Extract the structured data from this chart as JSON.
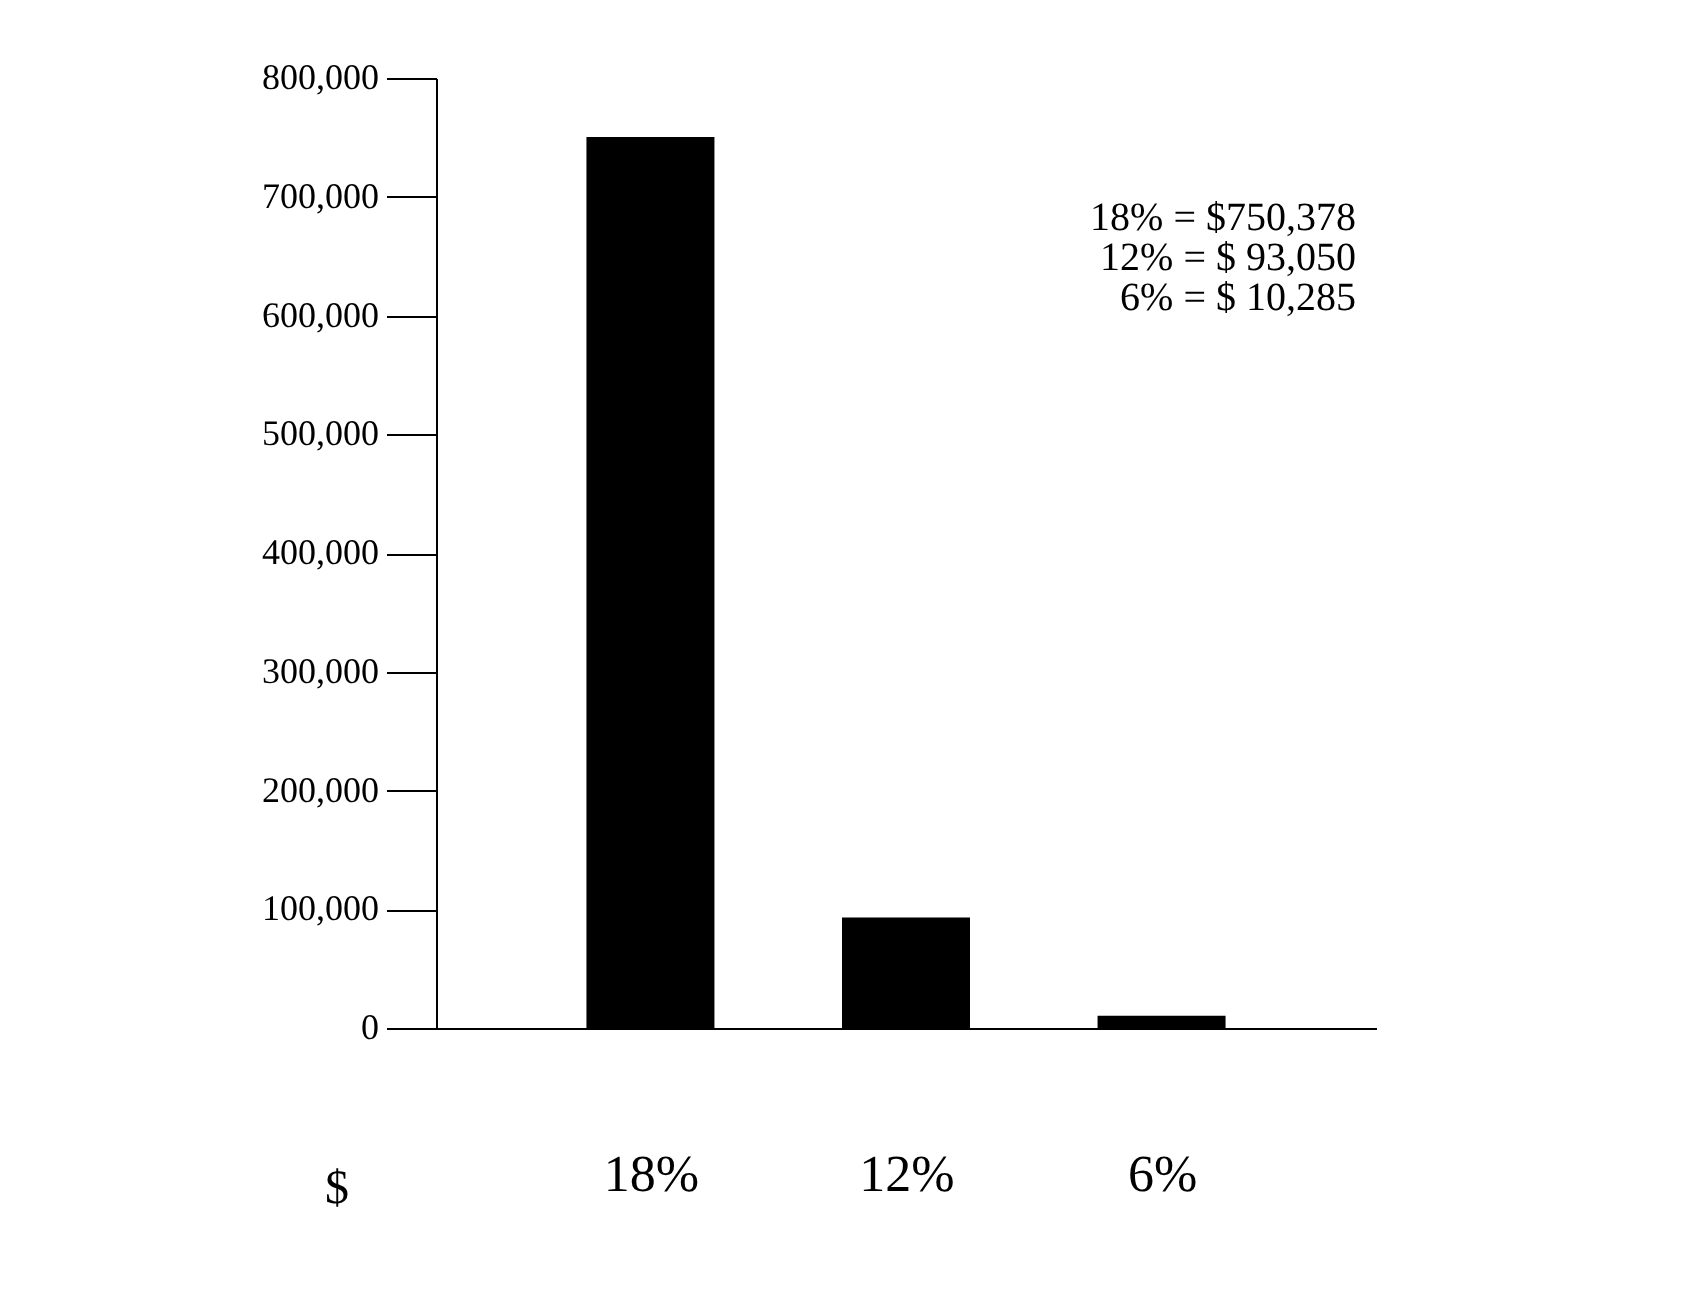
{
  "chart_data": {
    "type": "bar",
    "categories": [
      "18%",
      "12%",
      "6%"
    ],
    "values": [
      750378,
      93050,
      10285
    ],
    "color": "#000000",
    "ylabel": "$",
    "ylim": [
      0,
      800000
    ],
    "yticks": [
      0,
      {
        "value": 100000,
        "label": "100,000"
      },
      {
        "value": 200000,
        "label": "200,000"
      },
      {
        "value": 300000,
        "label": "300,000"
      },
      {
        "value": 400000,
        "label": "400,000"
      },
      {
        "value": 500000,
        "label": "500,000"
      },
      {
        "value": 600000,
        "label": "600,000"
      },
      {
        "value": 700000,
        "label": "700,000"
      },
      {
        "value": 800000,
        "label": "800,000"
      }
    ],
    "grid": false,
    "annotations": [
      "18% = $750,378",
      "12% = $ 93,050",
      "6% = $ 10,285"
    ]
  }
}
